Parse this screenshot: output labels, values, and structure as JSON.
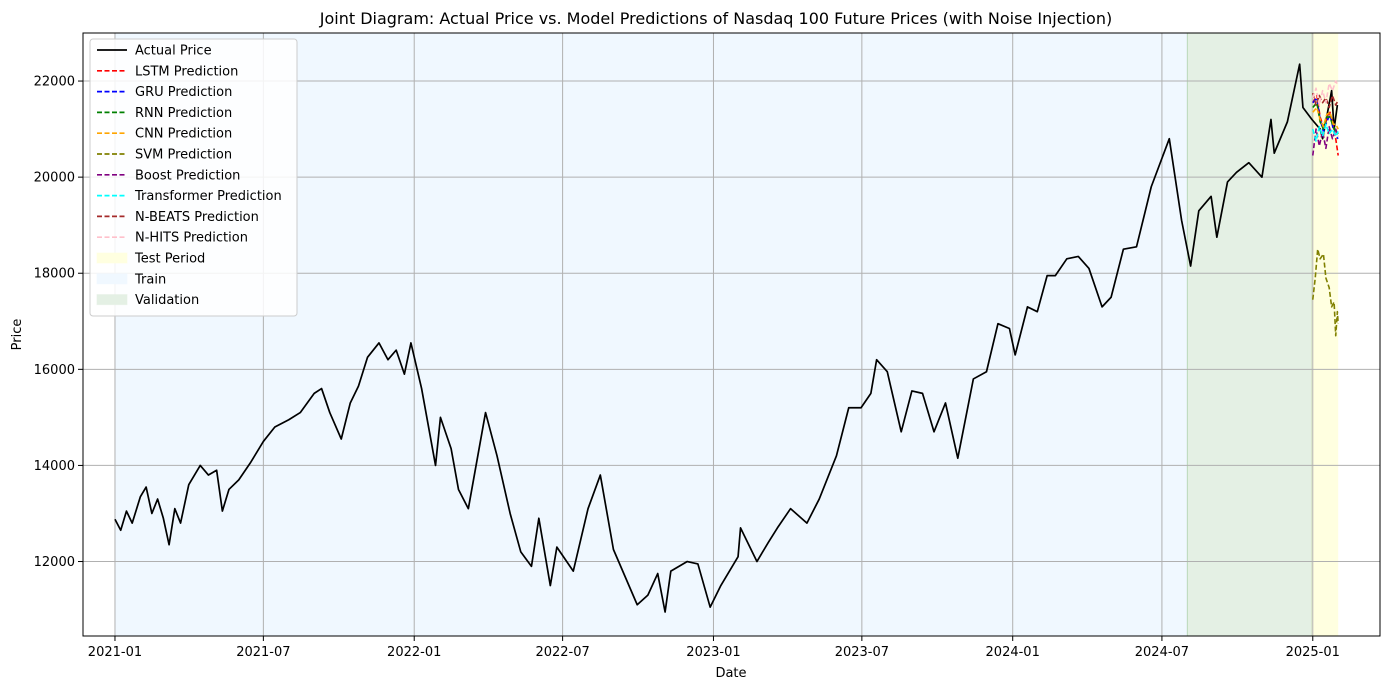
{
  "chart_data": {
    "type": "line",
    "title": "Joint Diagram: Actual Price vs. Model Predictions of Nasdaq 100 Future Prices (with Noise Injection)",
    "xlabel": "Date",
    "ylabel": "Price",
    "xlim": [
      "2020-11-23",
      "2025-03-24"
    ],
    "ylim": [
      10450,
      23000
    ],
    "x_ticks": [
      "2021-01",
      "2021-07",
      "2022-01",
      "2022-07",
      "2023-01",
      "2023-07",
      "2024-01",
      "2024-07",
      "2025-01"
    ],
    "y_ticks": [
      12000,
      14000,
      16000,
      18000,
      20000,
      22000
    ],
    "grid": true,
    "legend_position": "top-left",
    "regions": [
      {
        "name": "Train",
        "start": "2021-01-01",
        "end": "2024-08-01",
        "color": "#f0f8ff"
      },
      {
        "name": "Validation",
        "start": "2024-08-01",
        "end": "2024-12-31",
        "color": "#e4f0e4"
      },
      {
        "name": "Test Period",
        "start": "2024-12-31",
        "end": "2025-02-01",
        "color": "#ffffe0"
      }
    ],
    "series": [
      {
        "name": "Actual Price",
        "style": "solid",
        "color": "#000000",
        "points": [
          [
            "2021-01-01",
            12880
          ],
          [
            "2021-01-08",
            12650
          ],
          [
            "2021-01-15",
            13050
          ],
          [
            "2021-01-22",
            12800
          ],
          [
            "2021-02-01",
            13350
          ],
          [
            "2021-02-08",
            13550
          ],
          [
            "2021-02-15",
            13000
          ],
          [
            "2021-02-22",
            13300
          ],
          [
            "2021-03-01",
            12900
          ],
          [
            "2021-03-08",
            12350
          ],
          [
            "2021-03-15",
            13100
          ],
          [
            "2021-03-22",
            12800
          ],
          [
            "2021-04-01",
            13600
          ],
          [
            "2021-04-15",
            14000
          ],
          [
            "2021-04-25",
            13800
          ],
          [
            "2021-05-05",
            13900
          ],
          [
            "2021-05-12",
            13050
          ],
          [
            "2021-05-20",
            13500
          ],
          [
            "2021-06-01",
            13700
          ],
          [
            "2021-06-15",
            14050
          ],
          [
            "2021-07-01",
            14500
          ],
          [
            "2021-07-15",
            14800
          ],
          [
            "2021-08-01",
            14950
          ],
          [
            "2021-08-15",
            15100
          ],
          [
            "2021-09-01",
            15500
          ],
          [
            "2021-09-10",
            15600
          ],
          [
            "2021-09-20",
            15100
          ],
          [
            "2021-10-04",
            14550
          ],
          [
            "2021-10-15",
            15300
          ],
          [
            "2021-10-25",
            15650
          ],
          [
            "2021-11-05",
            16250
          ],
          [
            "2021-11-19",
            16550
          ],
          [
            "2021-11-30",
            16200
          ],
          [
            "2021-12-10",
            16400
          ],
          [
            "2021-12-20",
            15900
          ],
          [
            "2021-12-28",
            16550
          ],
          [
            "2022-01-10",
            15600
          ],
          [
            "2022-01-27",
            14000
          ],
          [
            "2022-02-02",
            15000
          ],
          [
            "2022-02-15",
            14350
          ],
          [
            "2022-02-24",
            13500
          ],
          [
            "2022-03-08",
            13100
          ],
          [
            "2022-03-29",
            15100
          ],
          [
            "2022-04-12",
            14200
          ],
          [
            "2022-04-28",
            13000
          ],
          [
            "2022-05-11",
            12200
          ],
          [
            "2022-05-24",
            11900
          ],
          [
            "2022-06-02",
            12900
          ],
          [
            "2022-06-16",
            11500
          ],
          [
            "2022-06-24",
            12300
          ],
          [
            "2022-07-14",
            11800
          ],
          [
            "2022-08-01",
            13100
          ],
          [
            "2022-08-16",
            13800
          ],
          [
            "2022-09-01",
            12250
          ],
          [
            "2022-09-30",
            11100
          ],
          [
            "2022-10-13",
            11300
          ],
          [
            "2022-10-25",
            11750
          ],
          [
            "2022-11-03",
            10950
          ],
          [
            "2022-11-10",
            11800
          ],
          [
            "2022-11-30",
            12000
          ],
          [
            "2022-12-13",
            11950
          ],
          [
            "2022-12-28",
            11050
          ],
          [
            "2023-01-10",
            11500
          ],
          [
            "2023-01-31",
            12100
          ],
          [
            "2023-02-03",
            12700
          ],
          [
            "2023-02-23",
            12000
          ],
          [
            "2023-03-09",
            12400
          ],
          [
            "2023-03-20",
            12700
          ],
          [
            "2023-04-05",
            13100
          ],
          [
            "2023-04-25",
            12800
          ],
          [
            "2023-05-10",
            13300
          ],
          [
            "2023-05-31",
            14200
          ],
          [
            "2023-06-15",
            15200
          ],
          [
            "2023-06-30",
            15200
          ],
          [
            "2023-07-12",
            15500
          ],
          [
            "2023-07-19",
            16200
          ],
          [
            "2023-08-01",
            15950
          ],
          [
            "2023-08-18",
            14700
          ],
          [
            "2023-08-31",
            15550
          ],
          [
            "2023-09-13",
            15500
          ],
          [
            "2023-09-27",
            14700
          ],
          [
            "2023-10-11",
            15300
          ],
          [
            "2023-10-26",
            14150
          ],
          [
            "2023-11-14",
            15800
          ],
          [
            "2023-11-30",
            15950
          ],
          [
            "2023-12-14",
            16950
          ],
          [
            "2023-12-28",
            16850
          ],
          [
            "2024-01-04",
            16300
          ],
          [
            "2024-01-19",
            17300
          ],
          [
            "2024-01-31",
            17200
          ],
          [
            "2024-02-12",
            17950
          ],
          [
            "2024-02-22",
            17950
          ],
          [
            "2024-03-07",
            18300
          ],
          [
            "2024-03-21",
            18350
          ],
          [
            "2024-04-03",
            18100
          ],
          [
            "2024-04-19",
            17300
          ],
          [
            "2024-04-30",
            17500
          ],
          [
            "2024-05-15",
            18500
          ],
          [
            "2024-05-31",
            18550
          ],
          [
            "2024-06-18",
            19800
          ],
          [
            "2024-07-10",
            20800
          ],
          [
            "2024-07-25",
            19100
          ],
          [
            "2024-08-05",
            18150
          ],
          [
            "2024-08-15",
            19300
          ],
          [
            "2024-08-30",
            19600
          ],
          [
            "2024-09-06",
            18750
          ],
          [
            "2024-09-19",
            19900
          ],
          [
            "2024-09-30",
            20100
          ],
          [
            "2024-10-15",
            20300
          ],
          [
            "2024-10-31",
            20000
          ],
          [
            "2024-11-11",
            21200
          ],
          [
            "2024-11-15",
            20500
          ],
          [
            "2024-12-01",
            21150
          ],
          [
            "2024-12-16",
            22350
          ],
          [
            "2024-12-20",
            21450
          ],
          [
            "2024-12-31",
            21200
          ],
          [
            "2025-01-10",
            21000
          ],
          [
            "2025-01-13",
            20800
          ],
          [
            "2025-01-24",
            21800
          ],
          [
            "2025-01-27",
            21000
          ],
          [
            "2025-01-31",
            21500
          ]
        ]
      },
      {
        "name": "LSTM Prediction",
        "style": "dashed",
        "color": "#ff0000",
        "points": [
          [
            "2025-01-01",
            21550
          ],
          [
            "2025-01-06",
            21700
          ],
          [
            "2025-01-10",
            21250
          ],
          [
            "2025-01-14",
            21050
          ],
          [
            "2025-01-18",
            21200
          ],
          [
            "2025-01-22",
            21350
          ],
          [
            "2025-01-26",
            21050
          ],
          [
            "2025-01-29",
            20800
          ],
          [
            "2025-02-01",
            20450
          ]
        ]
      },
      {
        "name": "GRU Prediction",
        "style": "dashed",
        "color": "#0000ff",
        "points": [
          [
            "2025-01-01",
            21550
          ],
          [
            "2025-01-06",
            21650
          ],
          [
            "2025-01-10",
            21200
          ],
          [
            "2025-01-14",
            20950
          ],
          [
            "2025-01-18",
            21150
          ],
          [
            "2025-01-22",
            21300
          ],
          [
            "2025-01-26",
            21000
          ],
          [
            "2025-01-29",
            20850
          ],
          [
            "2025-02-01",
            20800
          ]
        ]
      },
      {
        "name": "RNN Prediction",
        "style": "dashed",
        "color": "#008000",
        "points": [
          [
            "2025-01-01",
            21450
          ],
          [
            "2025-01-06",
            21550
          ],
          [
            "2025-01-10",
            21150
          ],
          [
            "2025-01-14",
            21000
          ],
          [
            "2025-01-18",
            21250
          ],
          [
            "2025-01-22",
            21250
          ],
          [
            "2025-01-26",
            21050
          ],
          [
            "2025-01-29",
            20950
          ],
          [
            "2025-02-01",
            20900
          ]
        ]
      },
      {
        "name": "CNN Prediction",
        "style": "dashed",
        "color": "#ffa500",
        "points": [
          [
            "2025-01-01",
            21350
          ],
          [
            "2025-01-06",
            21450
          ],
          [
            "2025-01-10",
            21200
          ],
          [
            "2025-01-14",
            21050
          ],
          [
            "2025-01-18",
            21300
          ],
          [
            "2025-01-22",
            21350
          ],
          [
            "2025-01-26",
            21100
          ],
          [
            "2025-01-29",
            21100
          ],
          [
            "2025-02-01",
            21000
          ]
        ]
      },
      {
        "name": "SVM Prediction",
        "style": "dashed",
        "color": "#808000",
        "points": [
          [
            "2025-01-01",
            17450
          ],
          [
            "2025-01-04",
            17900
          ],
          [
            "2025-01-07",
            18500
          ],
          [
            "2025-01-10",
            18300
          ],
          [
            "2025-01-14",
            18400
          ],
          [
            "2025-01-17",
            17900
          ],
          [
            "2025-01-21",
            17700
          ],
          [
            "2025-01-24",
            17300
          ],
          [
            "2025-01-27",
            17400
          ],
          [
            "2025-01-29",
            16700
          ],
          [
            "2025-01-31",
            17200
          ],
          [
            "2025-02-01",
            16950
          ]
        ]
      },
      {
        "name": "Boost Prediction",
        "style": "dashed",
        "color": "#800080",
        "points": [
          [
            "2025-01-01",
            20450
          ],
          [
            "2025-01-05",
            21000
          ],
          [
            "2025-01-09",
            20650
          ],
          [
            "2025-01-13",
            20950
          ],
          [
            "2025-01-17",
            20600
          ],
          [
            "2025-01-21",
            21050
          ],
          [
            "2025-01-25",
            20800
          ],
          [
            "2025-01-29",
            21000
          ],
          [
            "2025-02-01",
            20850
          ]
        ]
      },
      {
        "name": "Transformer Prediction",
        "style": "dashed",
        "color": "#00ffff",
        "points": [
          [
            "2025-01-01",
            21000
          ],
          [
            "2025-01-05",
            20750
          ],
          [
            "2025-01-09",
            21050
          ],
          [
            "2025-01-13",
            20850
          ],
          [
            "2025-01-17",
            21100
          ],
          [
            "2025-01-21",
            20900
          ],
          [
            "2025-01-25",
            21000
          ],
          [
            "2025-01-29",
            20850
          ],
          [
            "2025-02-01",
            20950
          ]
        ]
      },
      {
        "name": "N-BEATS Prediction",
        "style": "dashed",
        "color": "#a52a2a",
        "points": [
          [
            "2025-01-01",
            21750
          ],
          [
            "2025-01-05",
            21500
          ],
          [
            "2025-01-09",
            21700
          ],
          [
            "2025-01-13",
            21550
          ],
          [
            "2025-01-17",
            21650
          ],
          [
            "2025-01-21",
            21450
          ],
          [
            "2025-01-25",
            21700
          ],
          [
            "2025-01-29",
            21500
          ],
          [
            "2025-02-01",
            21600
          ]
        ]
      },
      {
        "name": "N-HITS Prediction",
        "style": "dashed",
        "color": "#ffc0cb",
        "points": [
          [
            "2025-01-01",
            21650
          ],
          [
            "2025-01-05",
            21850
          ],
          [
            "2025-01-09",
            21500
          ],
          [
            "2025-01-13",
            21800
          ],
          [
            "2025-01-17",
            21550
          ],
          [
            "2025-01-21",
            21950
          ],
          [
            "2025-01-25",
            21800
          ],
          [
            "2025-01-29",
            22000
          ],
          [
            "2025-02-01",
            21900
          ]
        ]
      }
    ],
    "legend": [
      {
        "label": "Actual Price",
        "kind": "line",
        "style": "solid",
        "color": "#000000"
      },
      {
        "label": "LSTM Prediction",
        "kind": "line",
        "style": "dashed",
        "color": "#ff0000"
      },
      {
        "label": "GRU Prediction",
        "kind": "line",
        "style": "dashed",
        "color": "#0000ff"
      },
      {
        "label": "RNN Prediction",
        "kind": "line",
        "style": "dashed",
        "color": "#008000"
      },
      {
        "label": "CNN Prediction",
        "kind": "line",
        "style": "dashed",
        "color": "#ffa500"
      },
      {
        "label": "SVM Prediction",
        "kind": "line",
        "style": "dashed",
        "color": "#808000"
      },
      {
        "label": "Boost Prediction",
        "kind": "line",
        "style": "dashed",
        "color": "#800080"
      },
      {
        "label": "Transformer Prediction",
        "kind": "line",
        "style": "dashed",
        "color": "#00ffff"
      },
      {
        "label": "N-BEATS Prediction",
        "kind": "line",
        "style": "dashed",
        "color": "#a52a2a"
      },
      {
        "label": "N-HITS Prediction",
        "kind": "line",
        "style": "dashed",
        "color": "#ffc0cb"
      },
      {
        "label": "Test Period",
        "kind": "patch",
        "color": "#ffffe0"
      },
      {
        "label": "Train",
        "kind": "patch",
        "color": "#f0f8ff"
      },
      {
        "label": "Validation",
        "kind": "patch",
        "color": "#e4f0e4"
      }
    ]
  }
}
